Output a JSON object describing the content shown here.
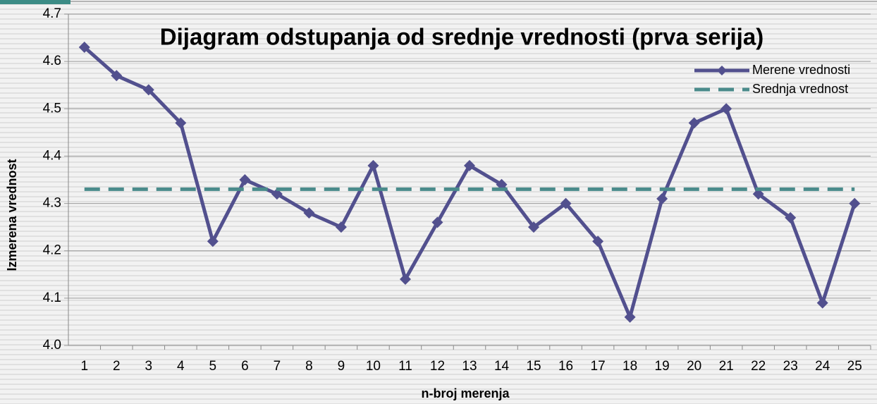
{
  "chart_data": {
    "type": "line",
    "title": "Dijagram odstupanja od srednje vrednosti (prva serija)",
    "x_label": "n-broj merenja",
    "y_label": "Izmerena vrednost",
    "categories": [
      "1",
      "2",
      "3",
      "4",
      "5",
      "6",
      "7",
      "8",
      "9",
      "10",
      "11",
      "12",
      "13",
      "14",
      "15",
      "16",
      "17",
      "18",
      "19",
      "20",
      "21",
      "22",
      "23",
      "24",
      "25"
    ],
    "series": [
      {
        "name": "Merene vrednosti",
        "color": "#52508e",
        "style": "solid",
        "marker": "diamond",
        "values": [
          4.63,
          4.57,
          4.54,
          4.47,
          4.22,
          4.35,
          4.32,
          4.28,
          4.25,
          4.38,
          4.14,
          4.26,
          4.38,
          4.34,
          4.25,
          4.3,
          4.22,
          4.06,
          4.31,
          4.47,
          4.5,
          4.32,
          4.27,
          4.09,
          4.3
        ]
      },
      {
        "name": "Srednja vrednost",
        "color": "#4a8b8b",
        "style": "dashed",
        "values": [
          4.33,
          4.33,
          4.33,
          4.33,
          4.33,
          4.33,
          4.33,
          4.33,
          4.33,
          4.33,
          4.33,
          4.33,
          4.33,
          4.33,
          4.33,
          4.33,
          4.33,
          4.33,
          4.33,
          4.33,
          4.33,
          4.33,
          4.33,
          4.33,
          4.33
        ]
      }
    ],
    "ylim": [
      4.0,
      4.7
    ],
    "yticks": [
      {
        "value": 4.0,
        "label": "4.0"
      },
      4.1,
      4.2,
      4.3,
      4.4,
      4.5,
      4.6,
      4.7
    ],
    "grid": true,
    "legend": "top-right"
  }
}
